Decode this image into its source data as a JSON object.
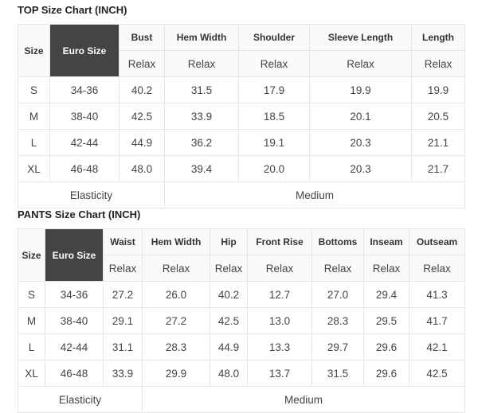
{
  "top": {
    "title": "TOP Size Chart (INCH)",
    "size_header": "Size",
    "euro_header": "Euro Size",
    "measure_headers": [
      "Bust",
      "Hem Width",
      "Shoulder",
      "Sleeve Length",
      "Length"
    ],
    "fit_labels": [
      "Relax",
      "Relax",
      "Relax",
      "Relax",
      "Relax"
    ],
    "rows": [
      {
        "size": "S",
        "euro": "34-36",
        "values": [
          "40.2",
          "31.5",
          "17.9",
          "19.9",
          "19.9"
        ]
      },
      {
        "size": "M",
        "euro": "38-40",
        "values": [
          "42.5",
          "33.9",
          "18.5",
          "20.1",
          "20.5"
        ]
      },
      {
        "size": "L",
        "euro": "42-44",
        "values": [
          "44.9",
          "36.2",
          "19.1",
          "20.3",
          "21.1"
        ]
      },
      {
        "size": "XL",
        "euro": "46-48",
        "values": [
          "48.0",
          "39.4",
          "20.0",
          "20.3",
          "21.7"
        ]
      }
    ],
    "elasticity_label": "Elasticity",
    "elasticity_value": "Medium"
  },
  "pants": {
    "title": "PANTS Size Chart (INCH)",
    "size_header": "Size",
    "euro_header": "Euro Size",
    "measure_headers": [
      "Waist",
      "Hem Width",
      "Hip",
      "Front Rise",
      "Bottoms",
      "Inseam",
      "Outseam"
    ],
    "fit_labels": [
      "Relax",
      "Relax",
      "Relax",
      "Relax",
      "Relax",
      "Relax",
      "Relax"
    ],
    "rows": [
      {
        "size": "S",
        "euro": "34-36",
        "values": [
          "27.2",
          "26.0",
          "40.2",
          "12.7",
          "27.0",
          "29.4",
          "41.3"
        ]
      },
      {
        "size": "M",
        "euro": "38-40",
        "values": [
          "29.1",
          "27.2",
          "42.5",
          "13.0",
          "28.3",
          "29.5",
          "41.7"
        ]
      },
      {
        "size": "L",
        "euro": "42-44",
        "values": [
          "31.1",
          "28.3",
          "44.9",
          "13.3",
          "29.7",
          "29.6",
          "42.1"
        ]
      },
      {
        "size": "XL",
        "euro": "46-48",
        "values": [
          "33.9",
          "29.9",
          "48.0",
          "13.7",
          "31.5",
          "29.6",
          "42.5"
        ]
      }
    ],
    "elasticity_label": "Elasticity",
    "elasticity_value": "Medium"
  },
  "colors": {
    "euro_header_bg": "#444444",
    "header_bg": "#fafafa",
    "border": "#e6e6e6"
  }
}
